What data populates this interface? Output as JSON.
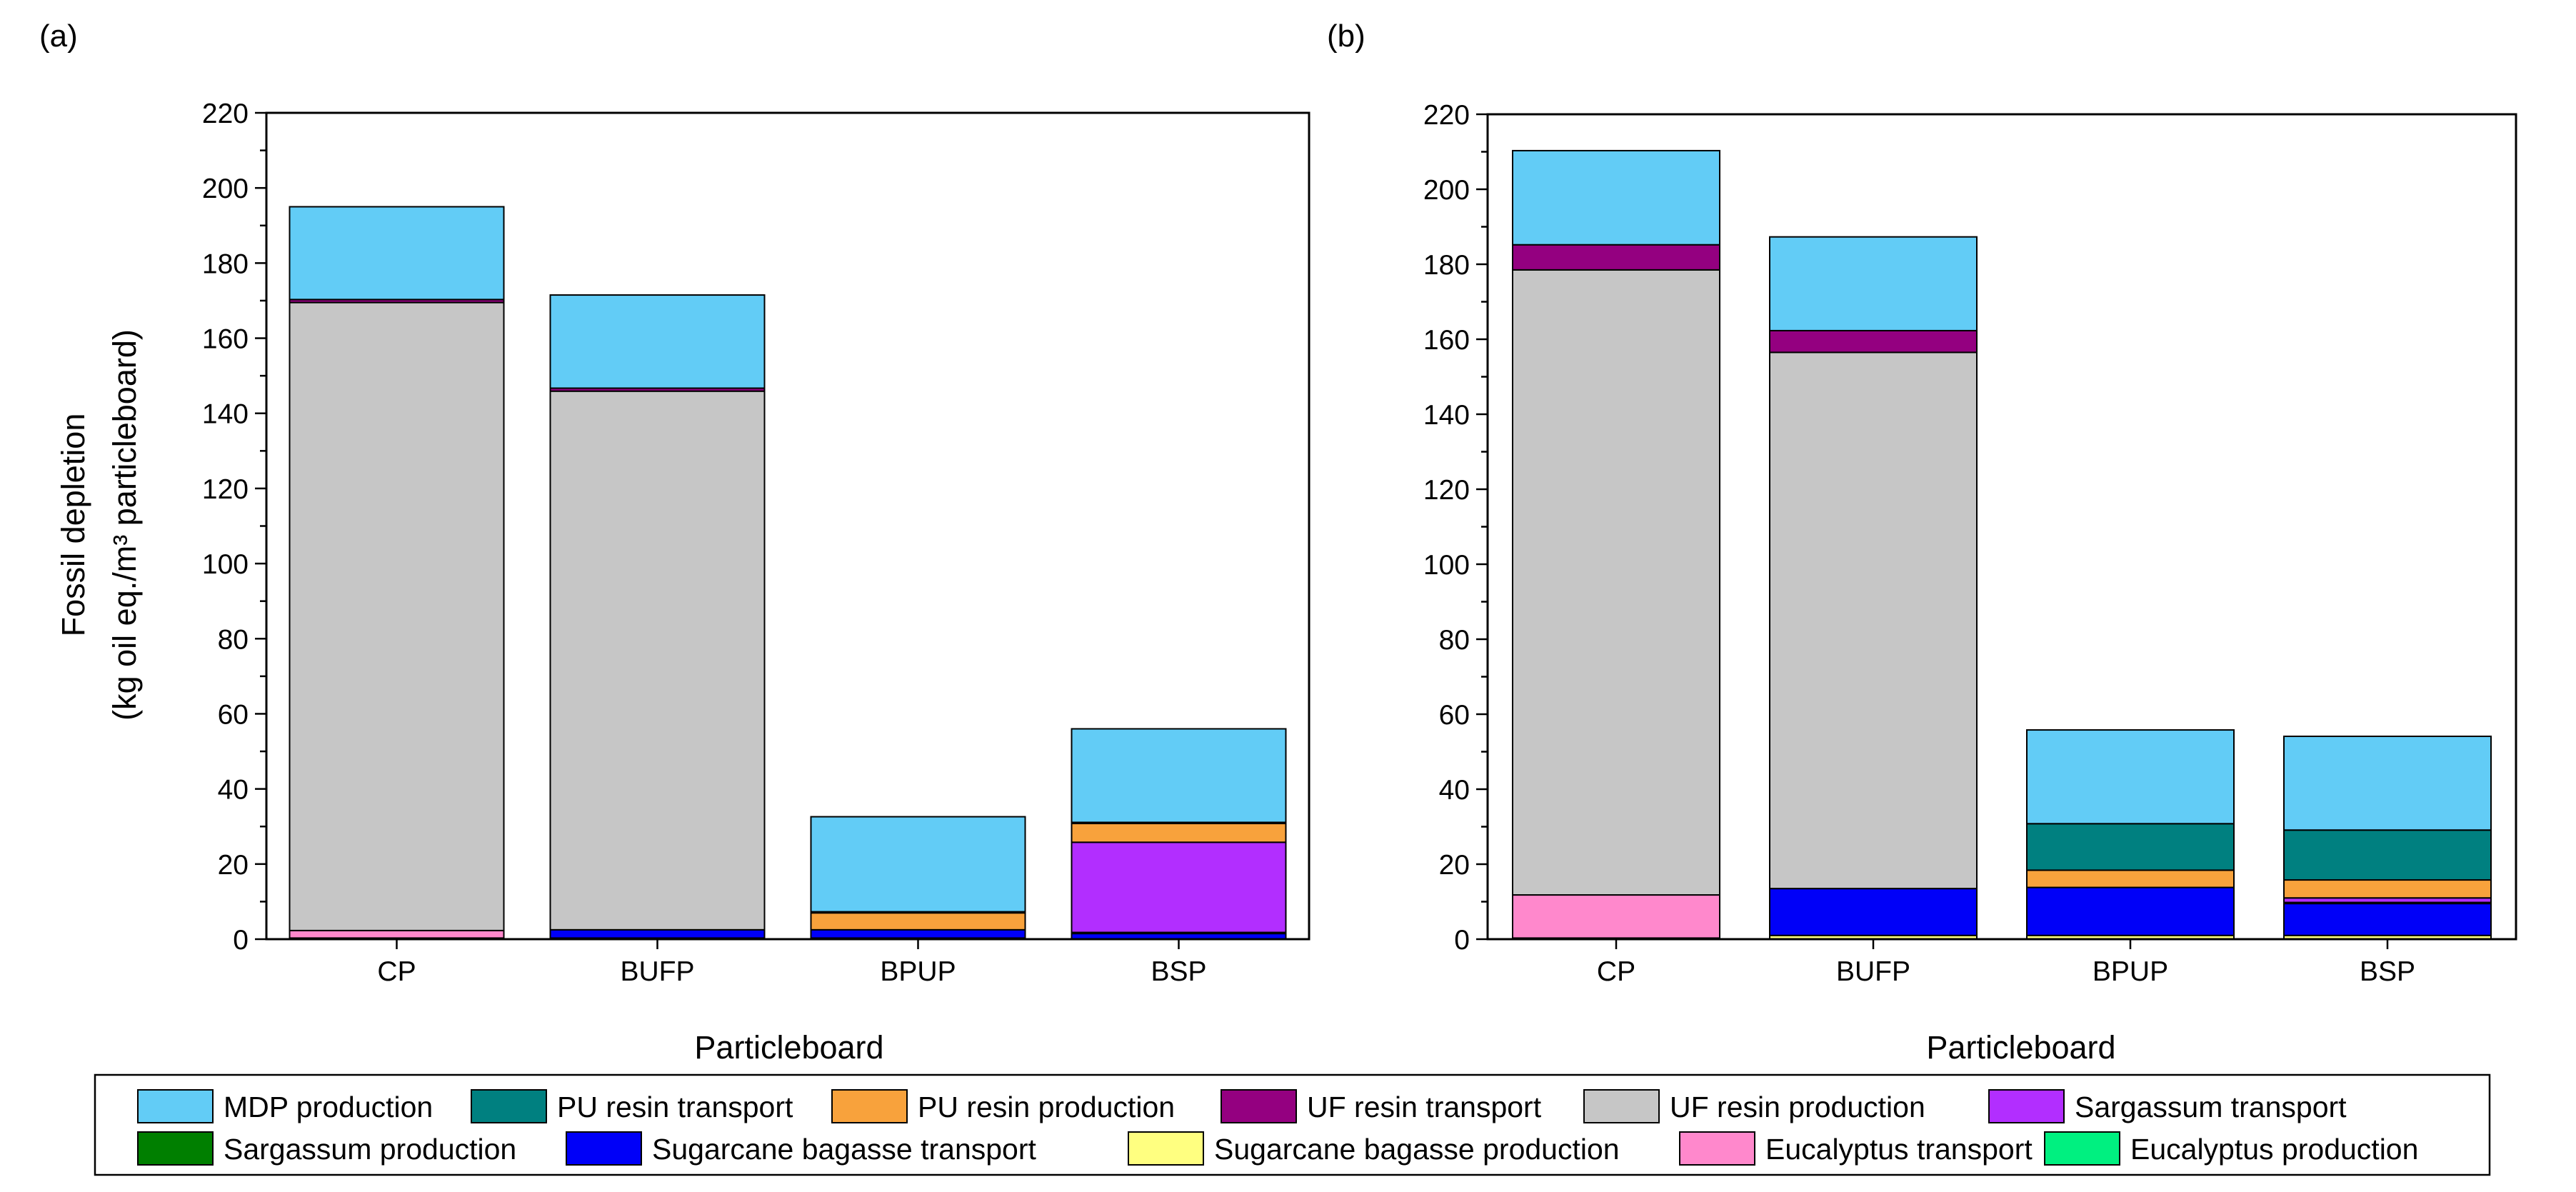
{
  "figure": {
    "ylabel_line1": "Fossil depletion",
    "ylabel_line2": "(kg oil eq./m³ particleboard)"
  },
  "series_colors": {
    "MDP production": "#62CCF6",
    "PU resin transport": "#008080",
    "PU resin production": "#F8A23C",
    "UF resin transport": "#940080",
    "UF resin production": "#C6C6C6",
    "Sargassum transport": "#B22EFF",
    "Sargassum production": "#007F00",
    "Sugarcane bagasse transport": "#0000F8",
    "Sugarcane bagasse production": "#FFFF80",
    "Eucalyptus transport": "#FF88CC",
    "Eucalyptus production": "#00F080"
  },
  "legend": {
    "items": [
      "MDP production",
      "PU resin transport",
      "PU resin production",
      "UF resin transport",
      "UF resin production",
      "Sargassum transport",
      "Sargassum production",
      "Sugarcane bagasse transport",
      "Sugarcane bagasse production",
      "Eucalyptus transport",
      "Eucalyptus production"
    ]
  },
  "chart_data": [
    {
      "type": "bar",
      "stacked": true,
      "panel_label": "(a)",
      "title": "",
      "xlabel": "Particleboard",
      "ylabel": "Fossil depletion (kg oil eq./m³ particleboard)",
      "ylim": [
        0,
        220
      ],
      "yticks": [
        0,
        20,
        40,
        60,
        80,
        100,
        120,
        140,
        160,
        180,
        200,
        220
      ],
      "categories": [
        "CP",
        "BUFP",
        "BPUP",
        "BSP"
      ],
      "series": [
        {
          "name": "Eucalyptus production",
          "values": [
            0.3,
            0,
            0,
            0
          ]
        },
        {
          "name": "Eucalyptus transport",
          "values": [
            2.0,
            0,
            0,
            0
          ]
        },
        {
          "name": "Sugarcane bagasse production",
          "values": [
            0,
            0.3,
            0.3,
            0
          ]
        },
        {
          "name": "Sugarcane bagasse transport",
          "values": [
            0,
            2.2,
            2.2,
            1.5
          ]
        },
        {
          "name": "Sargassum production",
          "values": [
            0,
            0,
            0,
            0.3
          ]
        },
        {
          "name": "Sargassum transport",
          "values": [
            0,
            0,
            0,
            24
          ]
        },
        {
          "name": "UF resin production",
          "values": [
            167.2,
            143.4,
            0,
            0
          ]
        },
        {
          "name": "UF resin transport",
          "values": [
            0.8,
            0.8,
            0,
            0
          ]
        },
        {
          "name": "PU resin production",
          "values": [
            0,
            0,
            4.5,
            5.0
          ]
        },
        {
          "name": "PU resin transport",
          "values": [
            0,
            0,
            0.3,
            0.3
          ]
        },
        {
          "name": "MDP production",
          "values": [
            24.7,
            24.8,
            25.3,
            24.9
          ]
        }
      ]
    },
    {
      "type": "bar",
      "stacked": true,
      "panel_label": "(b)",
      "title": "",
      "xlabel": "Particleboard",
      "ylabel": "",
      "ylim": [
        0,
        220
      ],
      "yticks": [
        0,
        20,
        40,
        60,
        80,
        100,
        120,
        140,
        160,
        180,
        200,
        220
      ],
      "categories": [
        "CP",
        "BUFP",
        "BPUP",
        "BSP"
      ],
      "series": [
        {
          "name": "Eucalyptus production",
          "values": [
            0.3,
            0,
            0,
            0
          ]
        },
        {
          "name": "Eucalyptus transport",
          "values": [
            11.5,
            0,
            0,
            0
          ]
        },
        {
          "name": "Sugarcane bagasse production",
          "values": [
            0,
            1.0,
            1.0,
            1.0
          ]
        },
        {
          "name": "Sugarcane bagasse transport",
          "values": [
            0,
            12.5,
            12.8,
            8.5
          ]
        },
        {
          "name": "Sargassum production",
          "values": [
            0,
            0,
            0,
            0.3
          ]
        },
        {
          "name": "Sargassum transport",
          "values": [
            0,
            0,
            0,
            1.2
          ]
        },
        {
          "name": "UF resin production",
          "values": [
            166.7,
            143.0,
            0,
            0
          ]
        },
        {
          "name": "UF resin transport",
          "values": [
            6.7,
            5.8,
            0,
            0
          ]
        },
        {
          "name": "PU resin production",
          "values": [
            0,
            0,
            4.6,
            4.8
          ]
        },
        {
          "name": "PU resin transport",
          "values": [
            0,
            0,
            12.4,
            13.3
          ]
        },
        {
          "name": "MDP production",
          "values": [
            25.1,
            25.0,
            25.0,
            25.0
          ]
        }
      ]
    }
  ]
}
